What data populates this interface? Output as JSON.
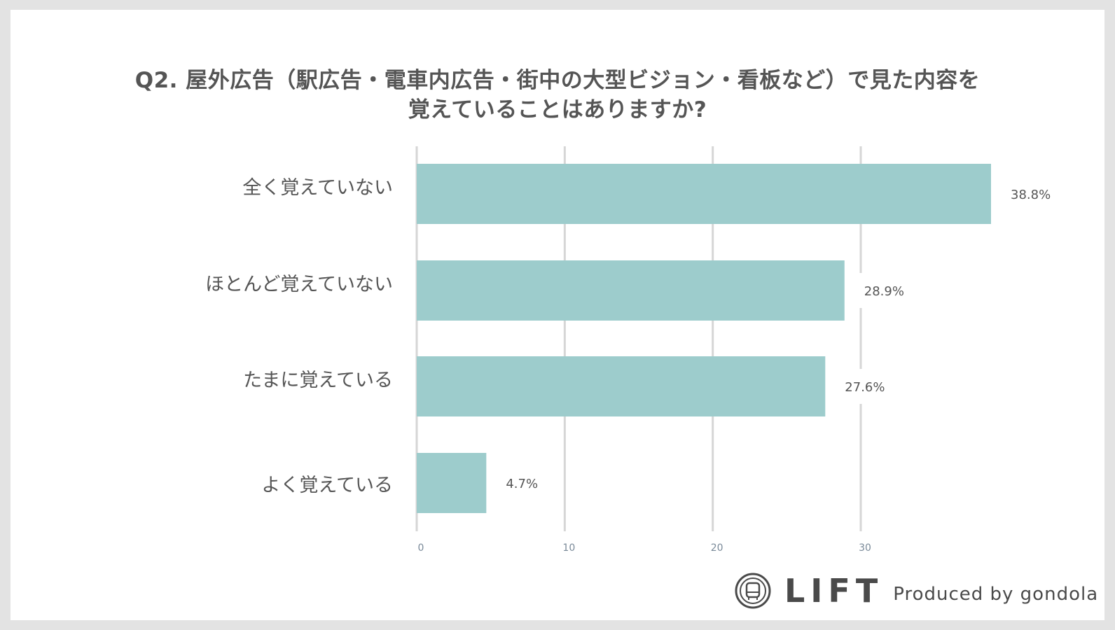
{
  "title_line1": "Q2. 屋外広告（駅広告・電車内広告・街中の大型ビジョン・看板など）で見た内容を",
  "title_line2": "覚えていることはありますか?",
  "chart_data": {
    "type": "bar",
    "orientation": "horizontal",
    "title": "Q2. 屋外広告（駅広告・電車内広告・街中の大型ビジョン・看板など）で見た内容を覚えていることはありますか?",
    "categories": [
      "全く覚えていない",
      "ほとんど覚えていない",
      "たまに覚えている",
      "よく覚えている"
    ],
    "values": [
      38.8,
      28.9,
      27.6,
      4.7
    ],
    "data_labels": [
      "38.8%",
      "28.9%",
      "27.6%",
      "4.7%"
    ],
    "xticks": [
      0,
      10,
      20,
      30
    ],
    "xlim": [
      0,
      38.8
    ],
    "grid": true,
    "bar_color": "#9dcccc"
  },
  "logo": {
    "name": "LIFT",
    "tagline": "Produced by gondola"
  }
}
